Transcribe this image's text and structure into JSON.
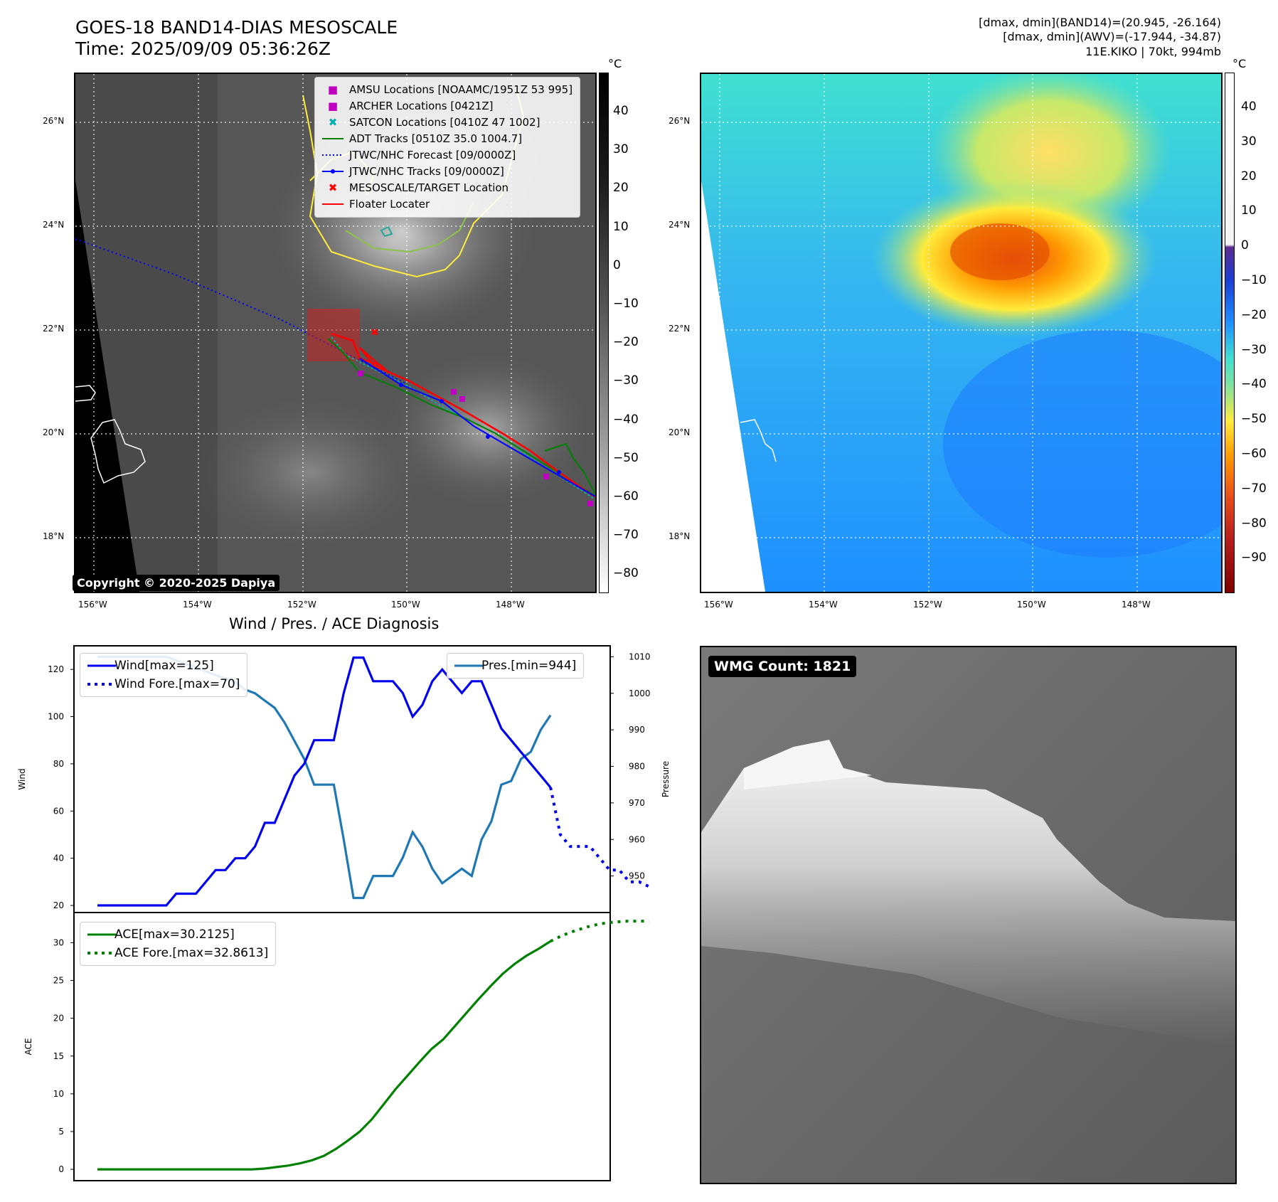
{
  "header": {
    "title": "GOES-18 BAND14-DIAS MESOSCALE",
    "time": "Time: 2025/09/09 05:36:26Z",
    "info_line1": "[dmax, dmin](BAND14)=(20.945, -26.164)",
    "info_line2": "[dmax, dmin](AWV)=(-17.944, -34.87)",
    "info_line3": "11E.KIKO | 70kt, 994mb"
  },
  "map_left": {
    "unit": "°C",
    "lat_labels": [
      "26°N",
      "24°N",
      "22°N",
      "20°N",
      "18°N"
    ],
    "lon_labels": [
      "156°W",
      "154°W",
      "152°W",
      "150°W",
      "148°W"
    ],
    "colorbar_labels": [
      "40",
      "30",
      "20",
      "10",
      "0",
      "−10",
      "−20",
      "−30",
      "−40",
      "−50",
      "−60",
      "−70",
      "−80"
    ],
    "legend": [
      {
        "label": "AMSU Locations [NOAAMC/1951Z 53 995]",
        "symbol": "■",
        "color": "#c000c0"
      },
      {
        "label": "ARCHER Locations [0421Z]",
        "symbol": "■",
        "color": "#c000c0"
      },
      {
        "label": "SATCON Locations [0410Z 47 1002]",
        "symbol": "✖",
        "color": "#00b0b0"
      },
      {
        "label": "ADT Tracks [0510Z 35.0 1004.7]",
        "symbol": "line",
        "color": "#008000"
      },
      {
        "label": "JTWC/NHC Forecast [09/0000Z]",
        "symbol": "dotted",
        "color": "#0000ff"
      },
      {
        "label": "JTWC/NHC Tracks [09/0000Z]",
        "symbol": "line-dot",
        "color": "#0000ff"
      },
      {
        "label": "MESOSCALE/TARGET Location",
        "symbol": "✖",
        "color": "#ff0000"
      },
      {
        "label": "Floater Locater",
        "symbol": "line",
        "color": "#ff0000"
      }
    ],
    "copyright": "Copyright © 2020-2025 Dapiya"
  },
  "map_right": {
    "unit": "°C",
    "lat_labels": [
      "26°N",
      "24°N",
      "22°N",
      "20°N",
      "18°N"
    ],
    "lon_labels": [
      "156°W",
      "154°W",
      "152°W",
      "150°W",
      "148°W"
    ],
    "colorbar_labels": [
      "40",
      "30",
      "20",
      "10",
      "0",
      "−10",
      "−20",
      "−30",
      "−40",
      "−50",
      "−60",
      "−70",
      "−80",
      "−90"
    ]
  },
  "wmg_panel": {
    "label": "WMG Count: 1821"
  },
  "chart_data": [
    {
      "type": "line",
      "title": "Wind / Pres. / ACE Diagnosis",
      "ylabel": "Wind",
      "ylabel_right": "Pressure",
      "ylim": [
        17,
        130
      ],
      "ylim_right": [
        940,
        1013
      ],
      "yticks": [
        20,
        40,
        60,
        80,
        100,
        120
      ],
      "yticks_right": [
        950,
        960,
        970,
        980,
        990,
        1000,
        1010
      ],
      "series": [
        {
          "name": "Wind[max=125]",
          "color": "#0000ee",
          "style": "solid",
          "axis": "left",
          "values": [
            20,
            20,
            20,
            20,
            20,
            20,
            20,
            20,
            25,
            25,
            25,
            30,
            35,
            35,
            40,
            40,
            45,
            55,
            55,
            65,
            75,
            80,
            90,
            90,
            90,
            110,
            125,
            125,
            115,
            115,
            115,
            110,
            100,
            105,
            115,
            120,
            115,
            110,
            115,
            115,
            105,
            95,
            90,
            85,
            80,
            75,
            70
          ]
        },
        {
          "name": "Wind Fore.[max=70]",
          "color": "#0000ee",
          "style": "dotted",
          "axis": "left",
          "values": [
            70,
            50,
            45,
            45,
            45,
            40,
            35,
            35,
            30,
            30,
            28
          ]
        },
        {
          "name": "Pres.[min=944]",
          "color": "#1f77b4",
          "style": "solid",
          "axis": "right",
          "values": [
            1010,
            1010,
            1010,
            1010,
            1010,
            1010,
            1010,
            1010,
            1009,
            1008,
            1007,
            1006,
            1005,
            1004,
            1003,
            1001,
            1000,
            998,
            996,
            992,
            987,
            982,
            975,
            975,
            975,
            960,
            944,
            944,
            950,
            950,
            950,
            955,
            962,
            958,
            952,
            948,
            950,
            952,
            950,
            960,
            965,
            975,
            976,
            982,
            984,
            990,
            994
          ]
        },
        {
          "name": "ACE[max=30.2125]",
          "color": "#008000",
          "style": "solid",
          "axis": "ace",
          "values": [
            0,
            0,
            0,
            0,
            0,
            0,
            0,
            0,
            0,
            0,
            0,
            0,
            0,
            0,
            0.1,
            0.3,
            0.5,
            0.8,
            1.2,
            1.8,
            2.7,
            3.8,
            5,
            6.6,
            8.6,
            10.6,
            12.4,
            14.2,
            15.9,
            17.2,
            19,
            20.8,
            22.6,
            24.3,
            25.9,
            27.2,
            28.3,
            29.2,
            30.2
          ]
        },
        {
          "name": "ACE Fore.[max=32.8613]",
          "color": "#008000",
          "style": "dotted",
          "axis": "ace",
          "values": [
            30.2,
            31,
            31.6,
            32.1,
            32.5,
            32.7,
            32.85,
            32.86,
            32.86
          ]
        }
      ],
      "ace_ylabel": "ACE",
      "ace_ylim": [
        -1.5,
        34
      ],
      "ace_yticks": [
        0,
        5,
        10,
        15,
        20,
        25,
        30
      ]
    }
  ]
}
